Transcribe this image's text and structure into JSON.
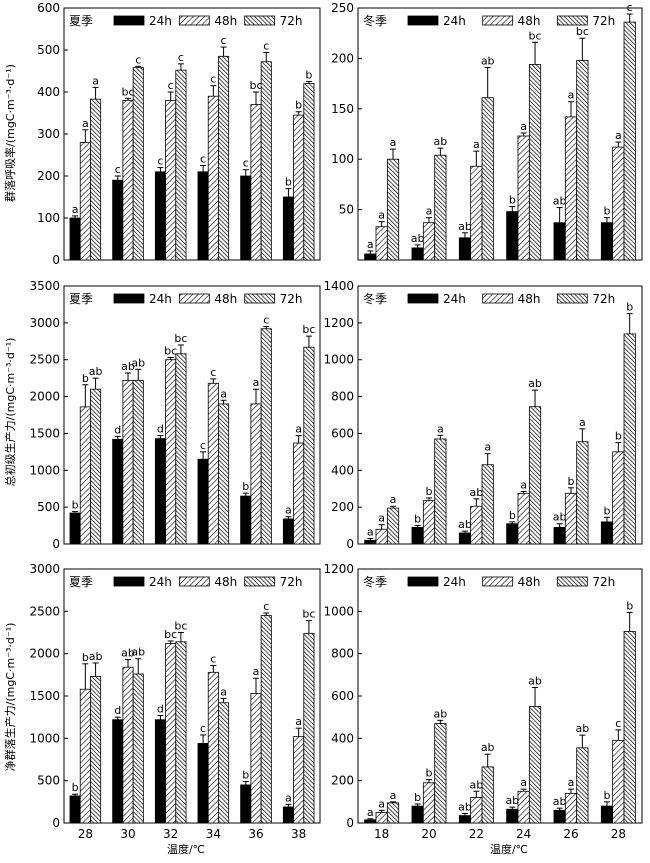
{
  "legend": [
    "24h",
    "48h",
    "72h"
  ],
  "colors": {
    "bar24": "#000000",
    "hatch": "#000000",
    "background": "#ffffff"
  },
  "y_labels": [
    "群落呼吸率/(mgC·m⁻³·d⁻¹)",
    "总初级生产力/(mgC·m⁻³·d⁻¹)",
    "净群落生产力/(mgC·m⁻³·d⁻¹)"
  ],
  "x_labels": [
    "温度/℃",
    "温度/℃"
  ],
  "chart_data": [
    {
      "type": "bar",
      "season": "夏季",
      "categories": [
        "28",
        "30",
        "32",
        "34",
        "36",
        "38"
      ],
      "ylim": [
        0,
        600
      ],
      "yticks": [
        0,
        100,
        200,
        300,
        400,
        500,
        600
      ],
      "series": [
        {
          "name": "24h",
          "values": [
            100,
            190,
            210,
            210,
            200,
            150
          ],
          "errors": [
            5,
            10,
            10,
            15,
            15,
            20
          ],
          "letters": [
            "a",
            "c",
            "c",
            "c",
            "c",
            "b"
          ]
        },
        {
          "name": "48h",
          "values": [
            280,
            380,
            380,
            390,
            370,
            345
          ],
          "errors": [
            30,
            5,
            20,
            25,
            30,
            8
          ],
          "letters": [
            "a",
            "bc",
            "c",
            "c",
            "bc",
            "b"
          ]
        },
        {
          "name": "72h",
          "values": [
            383,
            458,
            452,
            485,
            472,
            420
          ],
          "errors": [
            28,
            3,
            15,
            22,
            22,
            5
          ],
          "letters": [
            "a",
            "c",
            "c",
            "c",
            "c",
            "b"
          ]
        }
      ]
    },
    {
      "type": "bar",
      "season": "冬季",
      "categories": [
        "18",
        "20",
        "22",
        "24",
        "26",
        "28"
      ],
      "ylim": [
        0,
        250
      ],
      "yticks": [
        50,
        100,
        150,
        200,
        250
      ],
      "series": [
        {
          "name": "24h",
          "values": [
            6,
            12,
            22,
            48,
            37,
            37
          ],
          "errors": [
            3,
            3,
            5,
            5,
            15,
            5
          ],
          "letters": [
            "a",
            "ab",
            "ab",
            "b",
            "ab",
            "b"
          ]
        },
        {
          "name": "48h",
          "values": [
            33,
            37,
            93,
            123,
            142,
            112
          ],
          "errors": [
            5,
            5,
            15,
            3,
            15,
            5
          ],
          "letters": [
            "a",
            "a",
            "a",
            "a",
            "a",
            "a"
          ]
        },
        {
          "name": "72h",
          "values": [
            100,
            104,
            161,
            194,
            198,
            236
          ],
          "errors": [
            10,
            7,
            30,
            22,
            22,
            8
          ],
          "letters": [
            "a",
            "ab",
            "ab",
            "bc",
            "bc",
            "c"
          ]
        }
      ]
    },
    {
      "type": "bar",
      "season": "夏季",
      "categories": [
        "28",
        "30",
        "32",
        "34",
        "36",
        "38"
      ],
      "ylim": [
        0,
        3500
      ],
      "yticks": [
        0,
        500,
        1000,
        1500,
        2000,
        2500,
        3000,
        3500
      ],
      "series": [
        {
          "name": "24h",
          "values": [
            420,
            1420,
            1430,
            1150,
            650,
            340
          ],
          "errors": [
            20,
            40,
            40,
            100,
            40,
            30
          ],
          "letters": [
            "b",
            "d",
            "d",
            "c",
            "b",
            "a"
          ]
        },
        {
          "name": "48h",
          "values": [
            1860,
            2220,
            2500,
            2180,
            1900,
            1370
          ],
          "errors": [
            300,
            100,
            30,
            60,
            200,
            100
          ],
          "letters": [
            "b",
            "ab",
            "bc",
            "c",
            "a",
            "a"
          ]
        },
        {
          "name": "72h",
          "values": [
            2100,
            2220,
            2580,
            1900,
            2920,
            2670
          ],
          "errors": [
            150,
            150,
            120,
            50,
            30,
            150
          ],
          "letters": [
            "ab",
            "ab",
            "bc",
            "a",
            "c",
            "bc"
          ]
        }
      ]
    },
    {
      "type": "bar",
      "season": "冬季",
      "categories": [
        "18",
        "20",
        "22",
        "24",
        "26",
        "28"
      ],
      "ylim": [
        0,
        1400
      ],
      "yticks": [
        0,
        200,
        400,
        600,
        800,
        1000,
        1200,
        1400
      ],
      "series": [
        {
          "name": "24h",
          "values": [
            20,
            90,
            60,
            110,
            90,
            120
          ],
          "errors": [
            10,
            10,
            10,
            10,
            20,
            25
          ],
          "letters": [
            "a",
            "b",
            "ab",
            "b",
            "ab",
            "b"
          ]
        },
        {
          "name": "48h",
          "values": [
            80,
            235,
            205,
            275,
            275,
            500
          ],
          "errors": [
            25,
            15,
            40,
            10,
            30,
            50
          ],
          "letters": [
            "a",
            "b",
            "ab",
            "a",
            "b",
            "b"
          ]
        },
        {
          "name": "72h",
          "values": [
            195,
            570,
            430,
            745,
            555,
            1140
          ],
          "errors": [
            10,
            20,
            60,
            90,
            70,
            110
          ],
          "letters": [
            "a",
            "a",
            "a",
            "ab",
            "a",
            "b"
          ]
        }
      ]
    },
    {
      "type": "bar",
      "season": "夏季",
      "categories": [
        "28",
        "30",
        "32",
        "34",
        "36",
        "38"
      ],
      "ylim": [
        0,
        3000
      ],
      "yticks": [
        0,
        500,
        1000,
        1500,
        2000,
        2500,
        3000
      ],
      "series": [
        {
          "name": "24h",
          "values": [
            320,
            1220,
            1220,
            940,
            450,
            190
          ],
          "errors": [
            20,
            30,
            50,
            100,
            40,
            30
          ],
          "letters": [
            "b",
            "d",
            "d",
            "c",
            "b",
            "a"
          ]
        },
        {
          "name": "48h",
          "values": [
            1580,
            1840,
            2120,
            1780,
            1530,
            1020
          ],
          "errors": [
            300,
            90,
            30,
            80,
            180,
            100
          ],
          "letters": [
            "b",
            "ab",
            "bc",
            "c",
            "a",
            "a"
          ]
        },
        {
          "name": "72h",
          "values": [
            1730,
            1760,
            2140,
            1420,
            2450,
            2240
          ],
          "errors": [
            160,
            180,
            110,
            50,
            30,
            150
          ],
          "letters": [
            "ab",
            "ab",
            "bc",
            "a",
            "c",
            "bc"
          ]
        }
      ]
    },
    {
      "type": "bar",
      "season": "冬季",
      "categories": [
        "18",
        "20",
        "22",
        "24",
        "26",
        "28"
      ],
      "ylim": [
        0,
        1200
      ],
      "yticks": [
        0,
        200,
        400,
        600,
        800,
        1000,
        1200
      ],
      "series": [
        {
          "name": "24h",
          "values": [
            15,
            80,
            35,
            65,
            60,
            80
          ],
          "errors": [
            5,
            10,
            10,
            10,
            10,
            20
          ],
          "letters": [
            "a",
            "b",
            "ab",
            "ab",
            "ab",
            "b"
          ]
        },
        {
          "name": "48h",
          "values": [
            50,
            190,
            120,
            150,
            140,
            390
          ],
          "errors": [
            10,
            15,
            30,
            10,
            20,
            50
          ],
          "letters": [
            "a",
            "b",
            "ab",
            "a",
            "a",
            "c"
          ]
        },
        {
          "name": "72h",
          "values": [
            95,
            470,
            265,
            550,
            355,
            905
          ],
          "errors": [
            5,
            15,
            60,
            90,
            60,
            90
          ],
          "letters": [
            "a",
            "ab",
            "ab",
            "ab",
            "ab",
            "b"
          ]
        }
      ]
    }
  ]
}
